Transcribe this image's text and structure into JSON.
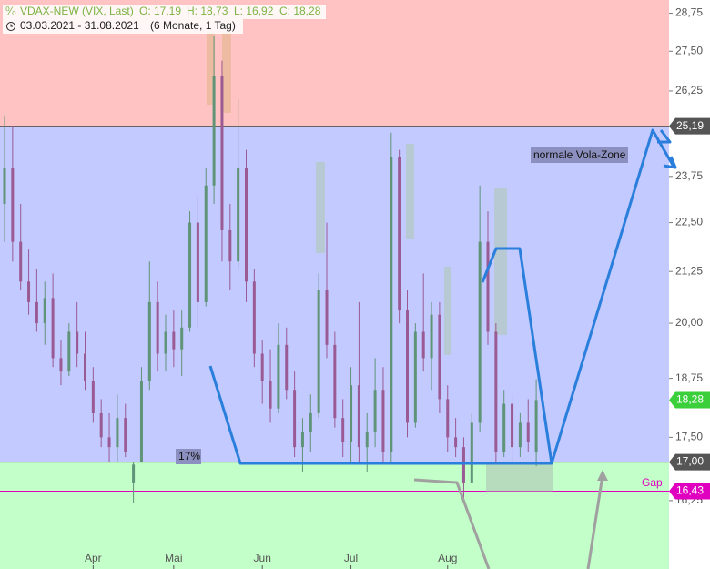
{
  "header": {
    "symbol": "VDAX-NEW (VIX, Last)",
    "open": "O: 17,19",
    "high": "H: 18,73",
    "low": "L: 16,92",
    "close": "C: 18,28",
    "range": "03.03.2021 - 31.08.2021",
    "period": "(6 Monate, 1 Tag)"
  },
  "chart_data": {
    "type": "candlestick",
    "log_scale": true,
    "ylim": [
      15,
      29.2
    ],
    "yticks": [
      {
        "value": 16.25,
        "label": "16,25"
      },
      {
        "value": 17.5,
        "label": "17,50"
      },
      {
        "value": 18.75,
        "label": "18,75"
      },
      {
        "value": 20,
        "label": "20,00"
      },
      {
        "value": 21.25,
        "label": "21,25"
      },
      {
        "value": 22.5,
        "label": "22,50"
      },
      {
        "value": 23.75,
        "label": "23,75"
      },
      {
        "value": 26.25,
        "label": "26,25"
      },
      {
        "value": 27.5,
        "label": "27,50"
      },
      {
        "value": 28.75,
        "label": "28,75"
      }
    ],
    "up_color": "#5f9478",
    "down_color": "#9a5a93",
    "zone_colors": [
      "#ffc3c3",
      "#c3caff",
      "#c3ffc8"
    ],
    "levels": [
      {
        "value": 25.19,
        "label": "25,19",
        "color": "#555555"
      },
      {
        "value": 18.28,
        "label": "18,28",
        "color": "#3ccf3c"
      },
      {
        "value": 17.0,
        "label": "17,00",
        "color": "#555555"
      },
      {
        "value": 16.43,
        "label": "16,43",
        "color": "#e000c0"
      }
    ],
    "annotations": [
      "normale Vola-Zone",
      "17%",
      "Gap"
    ],
    "categories": [
      null,
      null,
      null,
      null,
      null,
      null,
      null,
      null,
      null,
      null,
      null,
      "Apr",
      null,
      null,
      null,
      null,
      null,
      null,
      null,
      null,
      null,
      "Mai",
      null,
      null,
      null,
      null,
      null,
      null,
      null,
      null,
      null,
      null,
      "Jun",
      null,
      null,
      null,
      null,
      null,
      null,
      null,
      null,
      null,
      null,
      "Jul",
      null,
      null,
      null,
      null,
      null,
      null,
      null,
      null,
      null,
      null,
      null,
      "Aug",
      null,
      null,
      null,
      null,
      null,
      null,
      null,
      null,
      null,
      null,
      null
    ],
    "ohlc": [
      [
        23.0,
        25.5,
        22.0,
        24.0
      ],
      [
        24.0,
        25.2,
        21.5,
        22.0
      ],
      [
        22.0,
        23.0,
        20.8,
        21.0
      ],
      [
        21.0,
        21.8,
        20.2,
        20.5
      ],
      [
        20.5,
        21.3,
        19.8,
        20.0
      ],
      [
        20.0,
        21.0,
        19.5,
        20.6
      ],
      [
        20.6,
        21.2,
        19.0,
        19.2
      ],
      [
        19.2,
        19.6,
        18.6,
        18.9
      ],
      [
        18.9,
        20.0,
        18.8,
        19.8
      ],
      [
        19.8,
        20.5,
        19.0,
        19.3
      ],
      [
        19.3,
        19.8,
        18.5,
        18.7
      ],
      [
        18.7,
        19.0,
        17.8,
        18.0
      ],
      [
        18.0,
        18.3,
        17.3,
        17.5
      ],
      [
        17.5,
        18.0,
        17.0,
        17.3
      ],
      [
        17.3,
        18.4,
        17.0,
        17.9
      ],
      [
        17.9,
        18.2,
        17.1,
        17.2
      ],
      [
        16.6,
        17.0,
        16.2,
        16.95
      ],
      [
        17.0,
        19.0,
        17.0,
        18.7
      ],
      [
        18.7,
        21.5,
        18.5,
        20.5
      ],
      [
        20.5,
        21.0,
        18.9,
        19.3
      ],
      [
        19.3,
        20.2,
        18.9,
        19.8
      ],
      [
        19.8,
        20.3,
        19.0,
        19.4
      ],
      [
        19.4,
        20.3,
        18.8,
        19.9
      ],
      [
        19.9,
        22.8,
        19.8,
        22.5
      ],
      [
        22.5,
        23.2,
        19.9,
        20.5
      ],
      [
        20.5,
        24.0,
        20.4,
        23.5
      ],
      [
        23.5,
        28.0,
        23.0,
        26.7
      ],
      [
        26.7,
        27.2,
        21.5,
        22.3
      ],
      [
        22.3,
        23.0,
        20.8,
        21.5
      ],
      [
        21.5,
        26.0,
        21.3,
        24.0
      ],
      [
        24.0,
        24.5,
        20.5,
        21.0
      ],
      [
        21.0,
        21.3,
        19.0,
        19.3
      ],
      [
        19.3,
        19.6,
        18.2,
        18.7
      ],
      [
        18.7,
        19.4,
        17.8,
        18.1
      ],
      [
        18.1,
        20.0,
        18.0,
        19.5
      ],
      [
        19.5,
        19.9,
        18.3,
        18.5
      ],
      [
        18.5,
        18.9,
        17.1,
        17.3
      ],
      [
        17.3,
        17.9,
        16.8,
        17.6
      ],
      [
        17.6,
        18.4,
        17.2,
        18.0
      ],
      [
        18.0,
        21.2,
        17.9,
        20.8
      ],
      [
        20.8,
        22.5,
        19.2,
        19.5
      ],
      [
        19.5,
        19.8,
        17.7,
        17.9
      ],
      [
        17.9,
        18.3,
        17.1,
        17.4
      ],
      [
        17.4,
        19.0,
        17.0,
        18.6
      ],
      [
        18.6,
        20.5,
        17.0,
        17.3
      ],
      [
        17.3,
        18.0,
        16.8,
        17.6
      ],
      [
        17.6,
        19.2,
        17.3,
        18.5
      ],
      [
        18.5,
        19.0,
        17.0,
        17.2
      ],
      [
        17.2,
        25.0,
        17.0,
        24.3
      ],
      [
        24.3,
        24.5,
        20.0,
        20.3
      ],
      [
        20.3,
        20.8,
        17.5,
        17.8
      ],
      [
        17.8,
        20.0,
        17.7,
        19.8
      ],
      [
        19.8,
        21.2,
        18.9,
        19.2
      ],
      [
        19.2,
        20.5,
        18.5,
        20.2
      ],
      [
        20.2,
        20.5,
        18.0,
        18.3
      ],
      [
        18.3,
        18.6,
        17.2,
        17.5
      ],
      [
        17.5,
        17.9,
        17.1,
        17.3
      ],
      [
        17.3,
        17.5,
        16.2,
        16.6
      ],
      [
        16.6,
        18.0,
        16.6,
        17.8
      ],
      [
        17.8,
        23.5,
        17.6,
        22.0
      ],
      [
        22.0,
        22.8,
        19.5,
        19.8
      ],
      [
        19.8,
        20.0,
        17.0,
        17.2
      ],
      [
        17.2,
        18.5,
        17.1,
        18.2
      ],
      [
        18.2,
        18.4,
        17.0,
        17.3
      ],
      [
        17.3,
        18.0,
        17.1,
        17.8
      ],
      [
        17.8,
        18.3,
        17.2,
        17.4
      ],
      [
        17.19,
        18.73,
        16.92,
        18.28
      ]
    ]
  }
}
